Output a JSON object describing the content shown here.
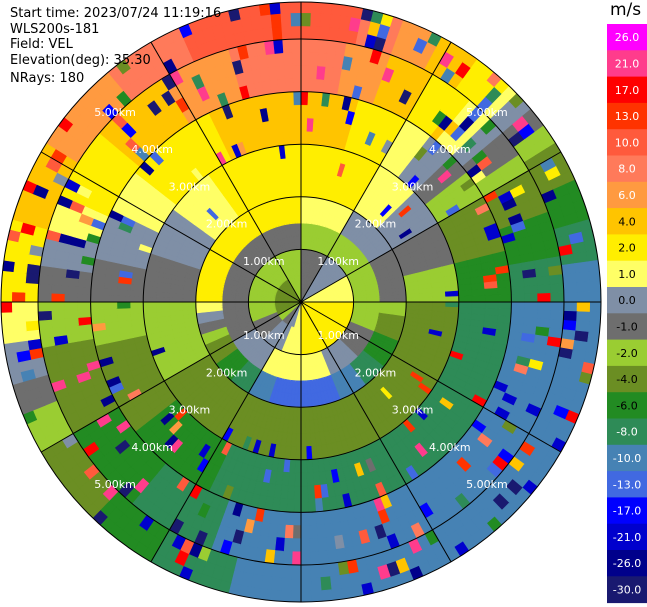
{
  "header": {
    "start_time": "Start time: 2023/07/24 11:19:16",
    "instrument": "WLS200s-181",
    "field": "Field: VEL",
    "elevation": "Elevation(deg): 35.30",
    "nrays": "NRays: 180"
  },
  "colorbar": {
    "unit": "m/s",
    "labels": [
      "26.0",
      "21.0",
      "17.0",
      "13.0",
      "10.0",
      "8.0",
      "6.0",
      "4.0",
      "2.0",
      "1.0",
      "0.0",
      "-1.0",
      "-2.0",
      "-4.0",
      "-6.0",
      "-8.0",
      "-10.0",
      "-13.0",
      "-17.0",
      "-21.0",
      "-26.0",
      "-30.0"
    ],
    "colors": [
      "#ff00ff",
      "#ff3c8c",
      "#ff0000",
      "#ff3300",
      "#ff5a3c",
      "#ff7a5a",
      "#ff9a40",
      "#ffc400",
      "#ffee00",
      "#ffff66",
      "#7f8fa6",
      "#6e6e6e",
      "#9acd32",
      "#6b8e23",
      "#228b22",
      "#2e8b57",
      "#4682b4",
      "#4169e1",
      "#0000ff",
      "#0000cd",
      "#00008b",
      "#191970"
    ]
  },
  "chart_data": {
    "type": "heatmap",
    "projection": "polar PPI",
    "field": "VEL",
    "units": "m/s",
    "nrays": 180,
    "elevation_deg": 35.3,
    "range_rings_km": [
      "1.00km",
      "2.00km",
      "3.00km",
      "4.00km",
      "5.00km"
    ],
    "spokes_deg": [
      0,
      30,
      60,
      90,
      120,
      150,
      180,
      210,
      240,
      270,
      300,
      330
    ],
    "velocity_by_range_and_azimuth_deg": {
      "0.0-0.5km": {
        "0": -1.0,
        "90": 2.0,
        "180": 2.0,
        "270": -4.0
      },
      "0.5-1.0km": {
        "0": -1.0,
        "90": 2.0,
        "180": 2.0,
        "270": -2.0
      },
      "1.0-1.5km": {
        "0": -1.0,
        "90": -2.0,
        "180": 2.0,
        "270": -1.0
      },
      "1.5-2.0km": {
        "0": 2.0,
        "90": -1.0,
        "180": -13.0,
        "270": 2.0
      },
      "2.0-3.0km": {
        "0": 4.0,
        "90": -2.0,
        "180": -4.0,
        "270": -1.0
      },
      "3.0-4.0km": {
        "0": 6.0,
        "90": -6.0,
        "180": -8.0,
        "270": -1.0
      },
      "4.0-5.0km": {
        "0": 10.0,
        "90": -8.0,
        "180": -10.0,
        "270": -1.0
      },
      "5.0-6.0km": {
        "0": 13.0,
        "90": -10.0,
        "180": -10.0,
        "270": 2.0
      }
    }
  }
}
